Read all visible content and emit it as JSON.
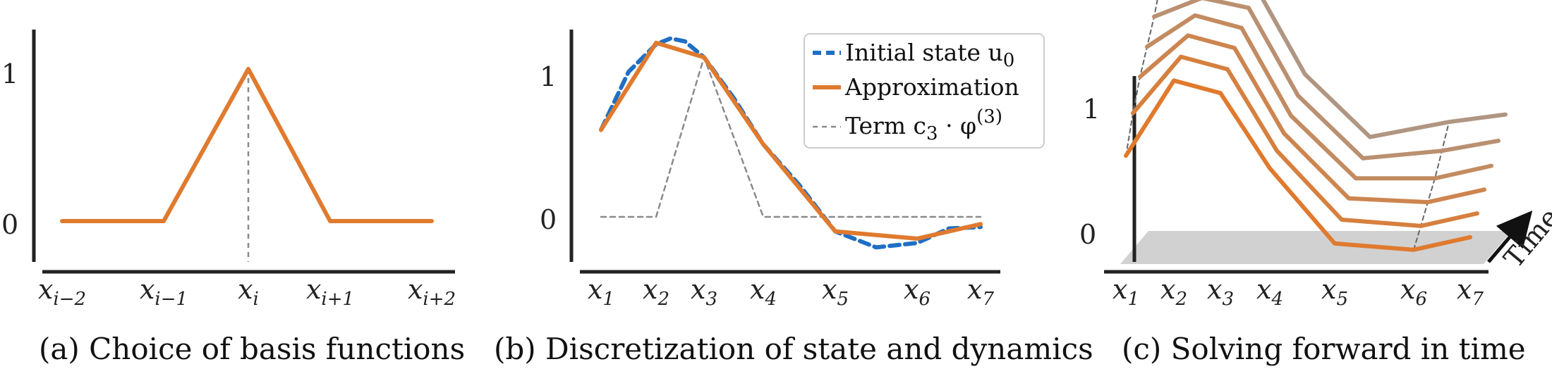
{
  "figures": {
    "a": {
      "caption": "(a) Choice of basis functions",
      "x_labels": [
        {
          "base": "x",
          "sub": "i−2"
        },
        {
          "base": "x",
          "sub": "i−1"
        },
        {
          "base": "x",
          "sub": "i"
        },
        {
          "base": "x",
          "sub": "i+1"
        },
        {
          "base": "x",
          "sub": "i+2"
        }
      ],
      "y_labels": [
        "0",
        "1"
      ]
    },
    "b": {
      "caption": "(b) Discretization of state and dynamics",
      "x_labels": [
        {
          "base": "x",
          "sub": "1"
        },
        {
          "base": "x",
          "sub": "2"
        },
        {
          "base": "x",
          "sub": "3"
        },
        {
          "base": "x",
          "sub": "4"
        },
        {
          "base": "x",
          "sub": "5"
        },
        {
          "base": "x",
          "sub": "6"
        },
        {
          "base": "x",
          "sub": "7"
        }
      ],
      "y_labels": [
        "0",
        "1"
      ],
      "legend": [
        {
          "text": "Initial state u",
          "sub": "0",
          "sup": "",
          "style": "dashed-blue"
        },
        {
          "text": "Approximation",
          "sub": "",
          "sup": "",
          "style": "solid-orange"
        },
        {
          "text": "Term c",
          "sub": "3",
          "sup": "(3)",
          "tail": " · φ",
          "style": "dashed-gray"
        }
      ]
    },
    "c": {
      "caption": "(c) Solving forward in time",
      "x_labels": [
        {
          "base": "x",
          "sub": "1"
        },
        {
          "base": "x",
          "sub": "2"
        },
        {
          "base": "x",
          "sub": "3"
        },
        {
          "base": "x",
          "sub": "4"
        },
        {
          "base": "x",
          "sub": "5"
        },
        {
          "base": "x",
          "sub": "6"
        },
        {
          "base": "x",
          "sub": "7"
        }
      ],
      "y_labels": [
        "0",
        "1"
      ],
      "time_label": "Time"
    }
  },
  "colors": {
    "orange": "#e07a2e",
    "blue": "#1f6fc4",
    "gray": "#8a8a8a",
    "axis": "#222222",
    "plane": "#cfcfcf"
  },
  "chart_data": [
    {
      "type": "line",
      "x": [
        -2,
        -1,
        0,
        1,
        2
      ],
      "series": [
        {
          "values": [
            0,
            0,
            1,
            0,
            0
          ]
        }
      ],
      "vertical_marker_x": 0,
      "ylim": [
        0,
        1
      ]
    },
    {
      "type": "line",
      "x": [
        1,
        2,
        3,
        4,
        5,
        6,
        7
      ],
      "series": [
        {
          "name": "Initial state u0",
          "x": [
            1,
            1.5,
            2,
            2.3,
            2.6,
            3,
            3.5,
            4,
            4.5,
            5,
            5.5,
            6,
            6.5,
            7
          ],
          "values": [
            0.6,
            1.0,
            1.19,
            1.23,
            1.21,
            1.1,
            0.82,
            0.5,
            0.22,
            -0.1,
            -0.21,
            -0.18,
            -0.08,
            -0.07
          ]
        },
        {
          "name": "Approximation",
          "values": [
            0.6,
            1.2,
            1.1,
            0.5,
            -0.1,
            -0.15,
            -0.05
          ]
        },
        {
          "name": "Term c3 · φ(3)",
          "values": [
            0,
            0,
            1.1,
            0,
            0,
            0,
            0
          ]
        }
      ],
      "ylim": [
        -0.3,
        1.4
      ],
      "legend_position": "top-right"
    },
    {
      "type": "line",
      "x": [
        1,
        2,
        3,
        4,
        5,
        6,
        7
      ],
      "series": [
        {
          "values": [
            0.6,
            1.2,
            1.1,
            0.5,
            -0.1,
            -0.15,
            -0.05
          ]
        },
        {
          "values": [
            0.85,
            1.3,
            1.2,
            0.55,
            0.0,
            -0.05,
            0.05
          ]
        },
        {
          "values": [
            1.05,
            1.38,
            1.28,
            0.6,
            0.08,
            0.05,
            0.15
          ]
        },
        {
          "values": [
            1.2,
            1.45,
            1.35,
            0.65,
            0.15,
            0.15,
            0.25
          ]
        },
        {
          "values": [
            1.35,
            1.5,
            1.42,
            0.72,
            0.22,
            0.28,
            0.36
          ]
        },
        {
          "values": [
            1.55,
            1.55,
            1.5,
            0.8,
            0.3,
            0.42,
            0.48
          ]
        }
      ],
      "ylim": [
        -0.3,
        1.6
      ]
    }
  ]
}
